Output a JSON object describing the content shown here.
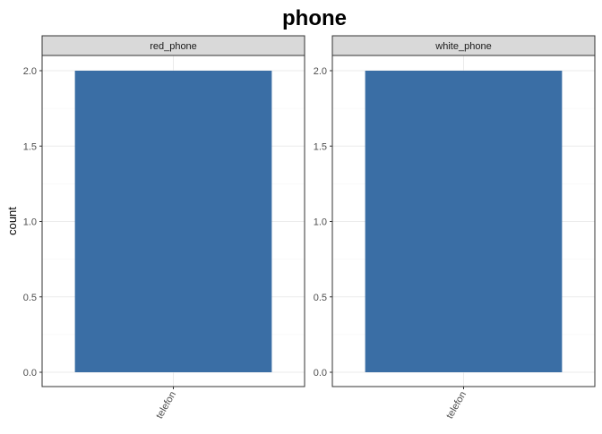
{
  "chart_data": {
    "type": "bar",
    "title": "phone",
    "xlabel": "",
    "ylabel": "count",
    "ylim": [
      0,
      2.0
    ],
    "yticks": [
      0.0,
      0.5,
      1.0,
      1.5,
      2.0
    ],
    "ytick_labels": [
      "0.0",
      "0.5",
      "1.0",
      "1.5",
      "2.0"
    ],
    "grid": true,
    "bar_color": "#3a6ea5",
    "facets": [
      {
        "label": "red_phone",
        "categories": [
          "telefon"
        ],
        "values": [
          2
        ]
      },
      {
        "label": "white_phone",
        "categories": [
          "telefon"
        ],
        "values": [
          2
        ]
      }
    ]
  }
}
